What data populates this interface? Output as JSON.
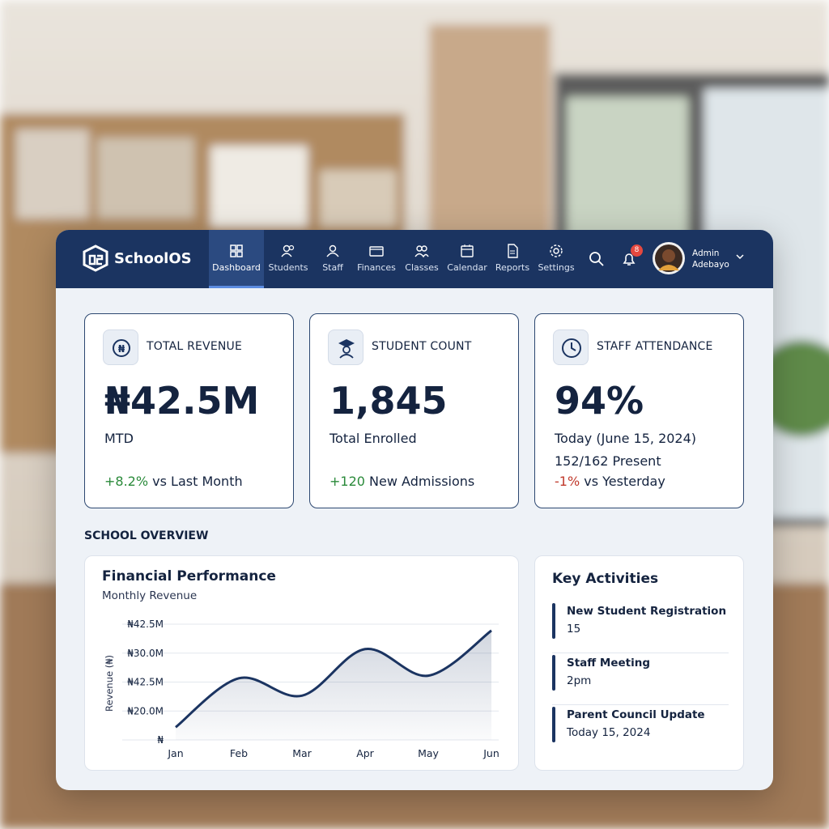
{
  "brand": "SchoolOS",
  "nav": [
    "Dashboard",
    "Students",
    "Staff",
    "Finances",
    "Classes",
    "Calendar",
    "Reports",
    "Settings"
  ],
  "notifications": 8,
  "user": {
    "first": "Admin",
    "last": "Adebayo"
  },
  "kpis": [
    {
      "title": "TOTAL REVENUE",
      "value": "₦42.5M",
      "sub": "MTD",
      "change": "+8.2%",
      "change_text": "vs Last Month"
    },
    {
      "title": "STUDENT COUNT",
      "value": "1,845",
      "sub": "Total Enrolled",
      "change": "+120",
      "change_text": "New Admissions"
    },
    {
      "title": "STAFF ATTENDANCE",
      "value": "94%",
      "sub": "Today (June 15, 2024)",
      "extra": "152/162 Present",
      "change": "-1%",
      "change_text": "vs Yesterday"
    }
  ],
  "section_title": "SCHOOL OVERVIEW",
  "chart_data": {
    "type": "line",
    "title": "Financial Performance",
    "subtitle": "Monthly Revenue",
    "y_label": "Revenue (₦)",
    "y_labels": [
      "₦42.5M",
      "₦30.0M",
      "₦42.5M",
      "₦20.0M",
      "₦"
    ],
    "categories": [
      "Jan",
      "Feb",
      "Mar",
      "Apr",
      "May",
      "Jun"
    ],
    "values": [
      0.44,
      2.13,
      1.53,
      3.14,
      2.22,
      3.78
    ],
    "color": "#1b3461",
    "grid": true
  },
  "activities": {
    "title": "Key Activities",
    "items": [
      {
        "title": "New Student Registration",
        "detail": "15"
      },
      {
        "title": "Staff Meeting",
        "detail": "2pm"
      },
      {
        "title": "Parent Council Update",
        "detail": "Today 15, 2024"
      }
    ]
  }
}
